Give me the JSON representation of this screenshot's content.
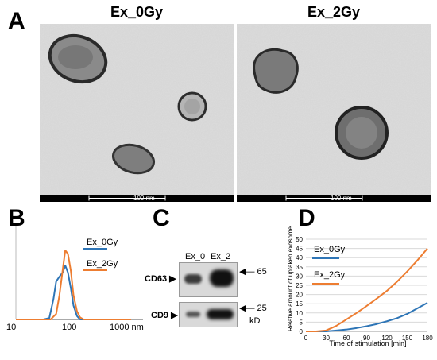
{
  "panels": {
    "A": {
      "letter": "A",
      "left_title": "Ex_0Gy",
      "right_title": "Ex_2Gy",
      "scale_label": "100 nm"
    },
    "B": {
      "letter": "B",
      "x_ticks": [
        "10",
        "100",
        "1000 nm"
      ],
      "legend": [
        "Ex_0Gy",
        "Ex_2Gy"
      ]
    },
    "C": {
      "letter": "C",
      "lane_labels": [
        "Ex_0",
        "Ex_2"
      ],
      "band_labels": [
        "CD63",
        "CD9"
      ],
      "marker_labels": [
        "65",
        "25"
      ],
      "unit": "kD"
    },
    "D": {
      "letter": "D",
      "ylabel": "Relative amount of uptaken exosomes [%]",
      "xlabel": "Time of stimulation [min]",
      "legend": [
        "Ex_0Gy",
        "Ex_2Gy"
      ]
    }
  },
  "colors": {
    "ex0gy": "#2e75b6",
    "ex2gy": "#ed7d31"
  },
  "chart_data": [
    {
      "type": "line",
      "panel": "B",
      "x_scale": "log",
      "xlim": [
        10,
        1000
      ],
      "x_tick_labels": [
        "10",
        "100",
        "1000 nm"
      ],
      "legend_position": "top-right",
      "series": [
        {
          "name": "Ex_0Gy",
          "x": [
            30,
            38,
            45,
            50,
            57,
            65,
            72,
            80,
            90,
            100,
            115,
            130
          ],
          "y": [
            0,
            0.02,
            0.3,
            0.55,
            0.62,
            0.68,
            0.78,
            0.68,
            0.45,
            0.2,
            0.05,
            0
          ]
        },
        {
          "name": "Ex_2Gy",
          "x": [
            40,
            50,
            57,
            65,
            72,
            80,
            90,
            100,
            115,
            130,
            150
          ],
          "y": [
            0,
            0.08,
            0.35,
            0.72,
            1.0,
            0.95,
            0.7,
            0.35,
            0.12,
            0.03,
            0
          ]
        }
      ]
    },
    {
      "type": "line",
      "panel": "D",
      "xlabel": "Time of stimulation [min]",
      "ylabel": "Relative amount of uptaken exosomes [%]",
      "xlim": [
        0,
        180
      ],
      "ylim": [
        0,
        50
      ],
      "x_ticks": [
        0,
        30,
        60,
        90,
        120,
        150,
        180
      ],
      "y_ticks": [
        0,
        5,
        10,
        15,
        20,
        25,
        30,
        35,
        40,
        45,
        50
      ],
      "legend_position": "top-left",
      "series": [
        {
          "name": "Ex_0Gy",
          "x": [
            0,
            15,
            30,
            45,
            60,
            75,
            90,
            105,
            120,
            135,
            150,
            165,
            180
          ],
          "y": [
            0,
            0,
            0,
            0.5,
            1.0,
            1.8,
            2.8,
            4.0,
            5.5,
            7.2,
            9.5,
            12.5,
            15.5
          ]
        },
        {
          "name": "Ex_2Gy",
          "x": [
            0,
            15,
            30,
            45,
            60,
            75,
            90,
            105,
            120,
            135,
            150,
            165,
            180
          ],
          "y": [
            0,
            0,
            0.5,
            3.0,
            6.5,
            10.0,
            13.8,
            17.8,
            22.0,
            27.0,
            32.5,
            38.5,
            45.0
          ]
        }
      ]
    }
  ]
}
